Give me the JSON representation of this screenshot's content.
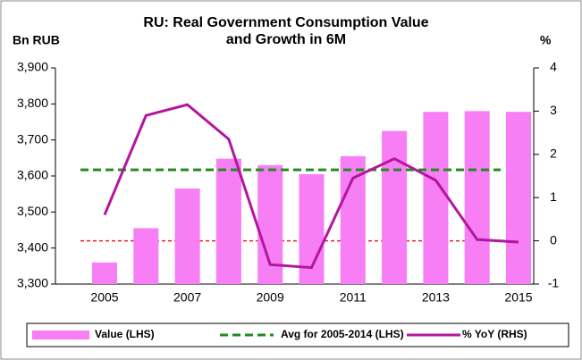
{
  "chart_data": {
    "type": "bar_line",
    "title": "RU: Real Government Consumption Value and Growth in 6M",
    "y_label": "Bn RUB",
    "y2_label": "%",
    "categories": [
      "2005",
      null,
      "2007",
      null,
      "2009",
      null,
      "2011",
      null,
      "2013",
      null,
      "2015"
    ],
    "ylim": [
      3300,
      3900
    ],
    "yticks": [
      {
        "value": 3300,
        "label": "3,300"
      },
      {
        "value": 3400,
        "label": "3,400"
      },
      {
        "value": 3500,
        "label": "3,500"
      },
      {
        "value": 3600,
        "label": "3,600"
      },
      {
        "value": 3700,
        "label": "3,700"
      },
      {
        "value": 3800,
        "label": "3,800"
      },
      {
        "value": 3900,
        "label": "3,900"
      }
    ],
    "y2lim": [
      -1,
      4
    ],
    "y2ticks": [
      -1,
      0,
      1,
      2,
      3,
      4
    ],
    "series": [
      {
        "name": "Value (LHS)",
        "kind": "bar",
        "color": "#f77ef4",
        "values": [
          3360,
          3455,
          3565,
          3648,
          3630,
          3605,
          3655,
          3725,
          3778,
          3780,
          3778
        ]
      },
      {
        "name": "Avg for 2005-2014 (LHS)",
        "kind": "hline",
        "color": "#1e8c1e",
        "value": 3617
      },
      {
        "name": "% YoY (RHS)",
        "kind": "line",
        "axis": "y2",
        "color": "#b3169c",
        "values": [
          0.6,
          2.9,
          3.15,
          2.35,
          -0.55,
          -0.62,
          1.45,
          1.9,
          1.4,
          0.03,
          -0.03
        ]
      }
    ]
  }
}
